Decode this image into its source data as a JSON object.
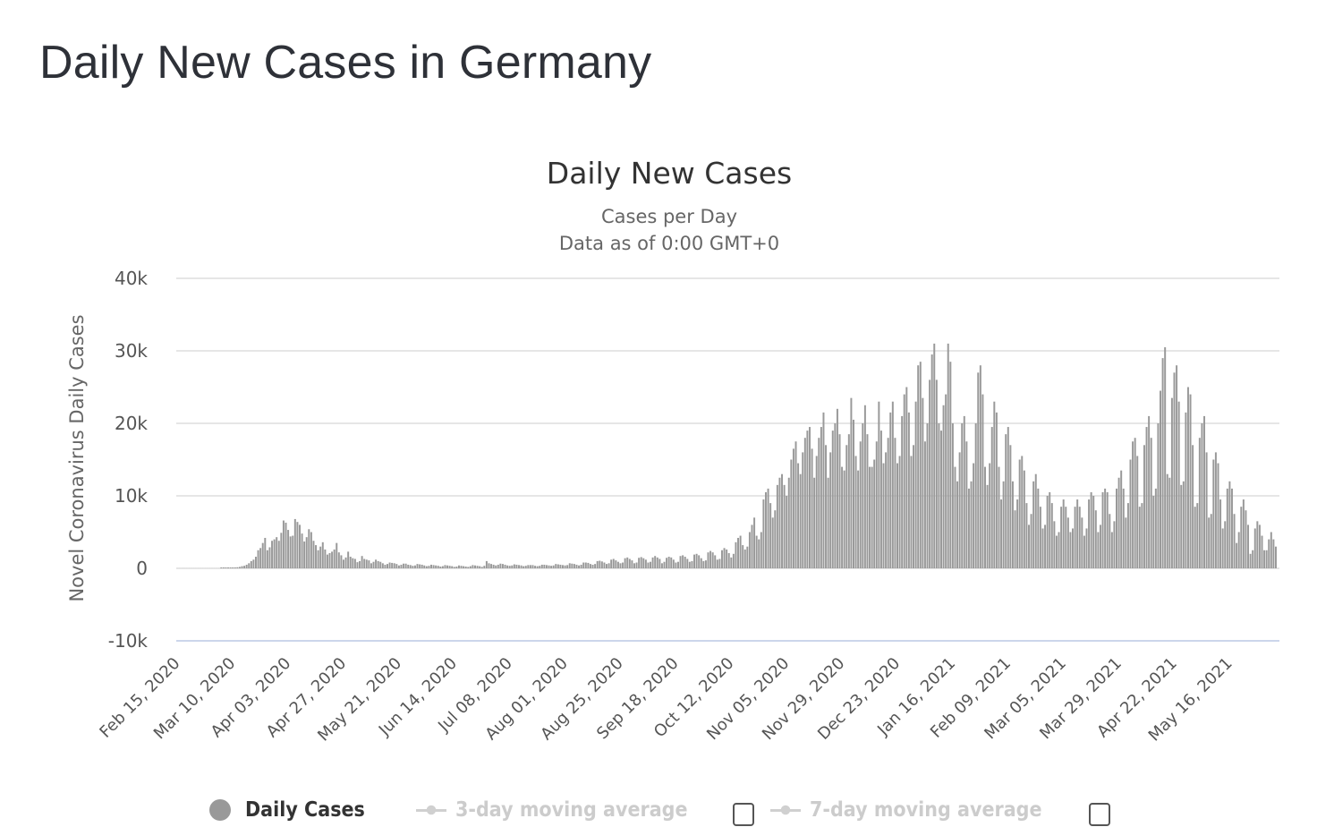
{
  "page": {
    "title": "Daily New Cases in Germany"
  },
  "chart_data": {
    "type": "bar",
    "title": "Daily New Cases",
    "subtitle_lines": [
      "Cases per Day",
      "Data as of 0:00 GMT+0"
    ],
    "ylabel": "Novel Coronavirus Daily Cases",
    "xlabel": "",
    "ylim": [
      -10000,
      40000
    ],
    "yticks": [
      -10000,
      0,
      10000,
      20000,
      30000,
      40000
    ],
    "ytick_labels": [
      "-10k",
      "0",
      "10k",
      "20k",
      "30k",
      "40k"
    ],
    "grid": true,
    "start_date": "Feb 15, 2020",
    "xtick_labels": [
      "Feb 15, 2020",
      "Mar 10, 2020",
      "Apr 03, 2020",
      "Apr 27, 2020",
      "May 21, 2020",
      "Jun 14, 2020",
      "Jul 08, 2020",
      "Aug 01, 2020",
      "Aug 25, 2020",
      "Sep 18, 2020",
      "Oct 12, 2020",
      "Nov 05, 2020",
      "Nov 29, 2020",
      "Dec 23, 2020",
      "Jan 16, 2021",
      "Feb 09, 2021",
      "Mar 05, 2021",
      "Mar 29, 2021",
      "Apr 22, 2021",
      "May 16, 2021"
    ],
    "xtick_interval_days": 24,
    "bar_color": "#999999",
    "series": [
      {
        "name": "Daily Cases",
        "values": [
          0,
          0,
          0,
          0,
          0,
          0,
          0,
          0,
          0,
          0,
          0,
          0,
          0,
          0,
          0,
          0,
          0,
          0,
          0,
          20,
          30,
          50,
          40,
          60,
          80,
          130,
          150,
          200,
          300,
          350,
          500,
          700,
          1000,
          1200,
          1600,
          2500,
          2800,
          3500,
          4200,
          2500,
          2900,
          3800,
          4000,
          4300,
          3800,
          4900,
          6600,
          6300,
          5300,
          4400,
          4500,
          6800,
          6400,
          6000,
          4800,
          3700,
          4300,
          5400,
          5000,
          3800,
          3200,
          2500,
          3000,
          3600,
          2600,
          1900,
          2100,
          2300,
          2600,
          3500,
          2200,
          1800,
          1200,
          1500,
          2300,
          1600,
          1400,
          1300,
          850,
          1000,
          1700,
          1300,
          1200,
          1100,
          700,
          900,
          1200,
          1000,
          900,
          700,
          500,
          600,
          800,
          750,
          700,
          600,
          400,
          500,
          650,
          650,
          500,
          450,
          350,
          400,
          600,
          550,
          500,
          400,
          300,
          350,
          500,
          450,
          400,
          350,
          250,
          300,
          450,
          400,
          350,
          300,
          200,
          250,
          400,
          350,
          300,
          250,
          200,
          300,
          450,
          400,
          350,
          300,
          200,
          350,
          1000,
          700,
          600,
          500,
          400,
          500,
          650,
          600,
          500,
          400,
          350,
          400,
          550,
          500,
          450,
          400,
          300,
          350,
          450,
          450,
          450,
          350,
          300,
          350,
          500,
          500,
          450,
          400,
          350,
          400,
          600,
          550,
          500,
          450,
          400,
          450,
          700,
          650,
          600,
          500,
          400,
          500,
          800,
          800,
          750,
          600,
          500,
          600,
          1000,
          1050,
          950,
          800,
          600,
          700,
          1200,
          1300,
          1100,
          900,
          700,
          800,
          1400,
          1500,
          1300,
          1100,
          700,
          800,
          1450,
          1550,
          1400,
          1200,
          800,
          900,
          1500,
          1700,
          1500,
          1300,
          700,
          900,
          1450,
          1600,
          1500,
          1200,
          800,
          900,
          1700,
          1800,
          1600,
          1300,
          900,
          1000,
          1900,
          2000,
          1800,
          1400,
          1000,
          1100,
          2200,
          2400,
          2200,
          1800,
          1200,
          1300,
          2500,
          2800,
          2600,
          2100,
          1500,
          2000,
          3600,
          4200,
          4500,
          3200,
          2600,
          3000,
          5000,
          6000,
          7000,
          4500,
          4000,
          5000,
          9500,
          10500,
          11000,
          9000,
          7000,
          8000,
          11500,
          12500,
          13000,
          11500,
          10000,
          12500,
          15000,
          16500,
          17500,
          14500,
          13000,
          16000,
          18000,
          19000,
          19500,
          16500,
          12500,
          15500,
          18000,
          19500,
          21500,
          17000,
          12500,
          16000,
          19000,
          20000,
          22000,
          18500,
          14000,
          13500,
          17000,
          18500,
          23500,
          20500,
          15500,
          13500,
          17500,
          20000,
          22500,
          18500,
          14000,
          14000,
          15000,
          17500,
          23000,
          19000,
          14500,
          16000,
          18000,
          21500,
          23000,
          18000,
          14500,
          15500,
          21000,
          24000,
          25000,
          21500,
          15500,
          17000,
          23000,
          28000,
          28500,
          23500,
          17500,
          20000,
          26000,
          29500,
          31000,
          26000,
          20000,
          19000,
          22500,
          24000,
          31000,
          28500,
          20000,
          14000,
          12000,
          16000,
          20000,
          21000,
          17500,
          11000,
          12000,
          14500,
          20000,
          27000,
          28000,
          24000,
          14000,
          11500,
          14500,
          19500,
          23000,
          21500,
          14000,
          9500,
          12000,
          18500,
          19500,
          17000,
          12000,
          8000,
          9500,
          15000,
          15500,
          13500,
          9000,
          6000,
          7500,
          12000,
          13000,
          11000,
          8500,
          5500,
          6000,
          10000,
          10500,
          9000,
          6500,
          4500,
          5000,
          8500,
          9500,
          8500,
          7000,
          5000,
          5500,
          8500,
          9500,
          8500,
          7000,
          4500,
          5500,
          9500,
          10500,
          10000,
          8000,
          5000,
          6000,
          10500,
          11000,
          10500,
          7500,
          5000,
          6500,
          11000,
          12500,
          13500,
          11000,
          7000,
          9000,
          15000,
          17500,
          18000,
          15500,
          8500,
          9000,
          17000,
          19500,
          21000,
          18000,
          10000,
          11000,
          20000,
          24500,
          29000,
          30500,
          13000,
          12500,
          23500,
          27000,
          28000,
          23000,
          11500,
          12000,
          21500,
          25000,
          24000,
          17000,
          8500,
          9000,
          18000,
          20000,
          21000,
          16000,
          7000,
          7500,
          15000,
          16000,
          14500,
          9500,
          5500,
          6500,
          11000,
          12000,
          11000,
          7500,
          3500,
          5000,
          8500,
          9500,
          8000,
          6000,
          2000,
          2500,
          5500,
          6500,
          6000,
          4500,
          2500,
          2500,
          4000,
          5000,
          4000,
          3000
        ]
      }
    ]
  },
  "legend": {
    "items": [
      {
        "label": "Daily Cases",
        "active": true,
        "color": "#999999"
      },
      {
        "label": "3-day moving average",
        "active": false,
        "checked": false
      },
      {
        "label": "7-day moving average",
        "active": false,
        "checked": false
      }
    ]
  }
}
